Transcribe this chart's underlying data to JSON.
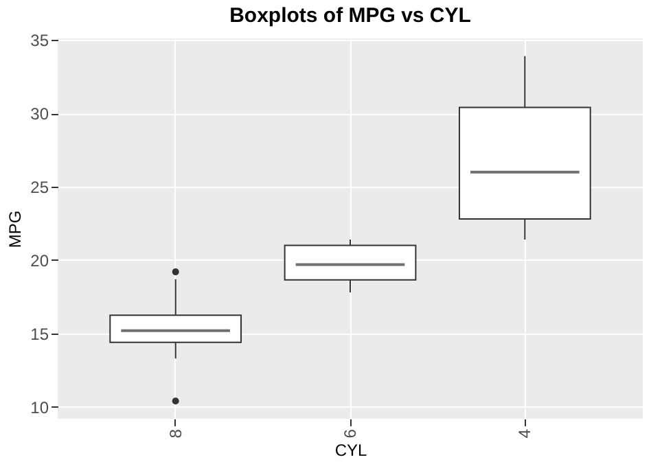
{
  "chart_data": {
    "type": "box",
    "title": "Boxplots of MPG vs CYL",
    "xlabel": "CYL",
    "ylabel": "MPG",
    "categories": [
      "8",
      "6",
      "4"
    ],
    "boxes": [
      {
        "low": 13.3,
        "q1": 14.4,
        "median": 15.2,
        "q3": 16.25,
        "high": 18.7,
        "outliers": [
          10.4,
          19.2
        ]
      },
      {
        "low": 17.8,
        "q1": 18.65,
        "median": 19.7,
        "q3": 21.0,
        "high": 21.4
      },
      {
        "low": 21.4,
        "q1": 22.8,
        "median": 26.0,
        "q3": 30.4,
        "high": 33.9
      }
    ],
    "ylim": [
      9.2,
      35.1
    ],
    "yticks": [
      10,
      15,
      20,
      25,
      30,
      35
    ],
    "grid": true
  }
}
